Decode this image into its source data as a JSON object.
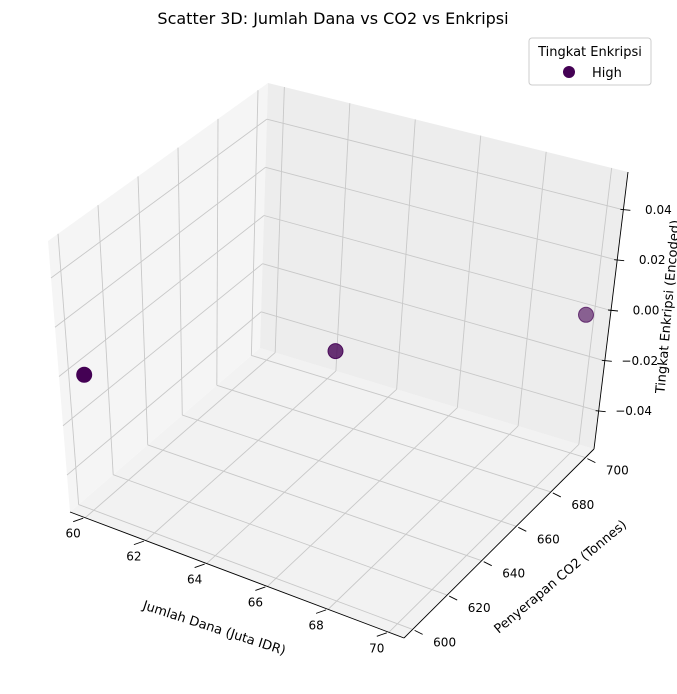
{
  "chart_data": {
    "type": "scatter",
    "projection": "3d",
    "title": "Scatter 3D: Jumlah Dana vs CO2 vs Enkripsi",
    "xlabel": "Jumlah Dana (Juta IDR)",
    "ylabel": "Penyerapan CO2 (Tonnes)",
    "zlabel": "Tingkat Enkripsi (Encoded)",
    "xlim": [
      59.5,
      70.5
    ],
    "ylim": [
      595,
      705
    ],
    "zlim": [
      -0.055,
      0.055
    ],
    "x_ticks": [
      "60",
      "62",
      "64",
      "66",
      "68",
      "70"
    ],
    "y_ticks": [
      "600",
      "620",
      "640",
      "660",
      "680",
      "700"
    ],
    "z_ticks": [
      "−0.04",
      "−0.02",
      "0.00",
      "0.02",
      "0.04"
    ],
    "grid": true,
    "legend": {
      "title": "Tingkat Enkripsi",
      "placement": "top-right",
      "entries": [
        {
          "label": "High",
          "color": "#440154"
        }
      ]
    },
    "series": [
      {
        "name": "High",
        "color": "#440154",
        "points": [
          {
            "x": 60,
            "y": 600,
            "z": 0
          },
          {
            "x": 65,
            "y": 650,
            "z": 0
          },
          {
            "x": 70,
            "y": 700,
            "z": 0
          }
        ]
      }
    ]
  }
}
